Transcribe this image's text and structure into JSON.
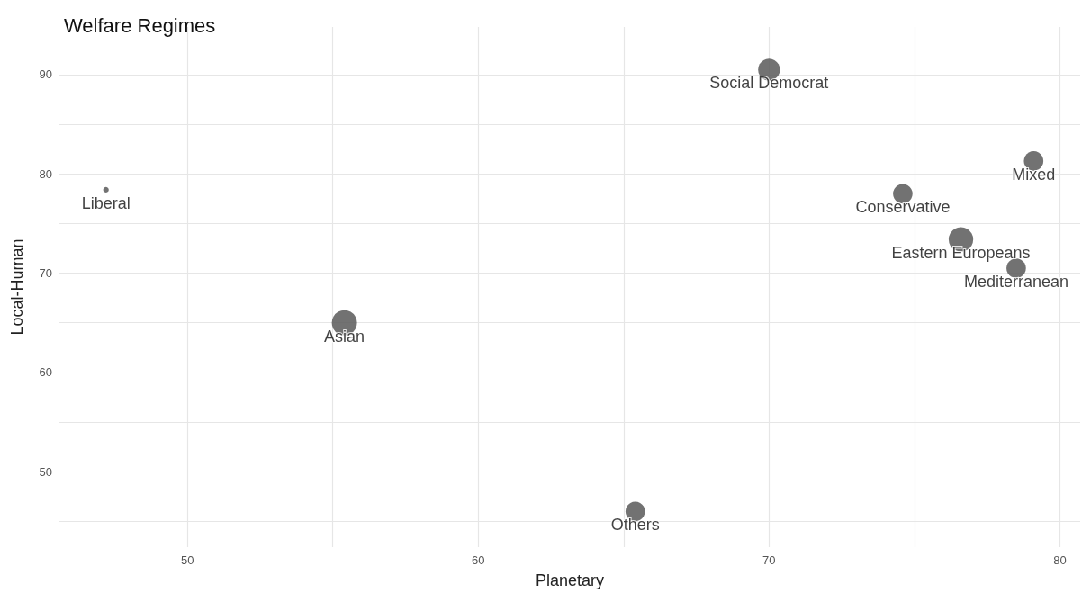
{
  "chart_data": {
    "type": "bubble",
    "title": "Welfare Regimes",
    "xlabel": "Planetary",
    "ylabel": "Local-Human",
    "x": [
      70.0,
      79.1,
      74.6,
      76.6,
      78.5,
      47.2,
      55.4,
      65.4
    ],
    "values": [
      90.5,
      81.3,
      78.0,
      73.4,
      70.5,
      78.4,
      65.0,
      46.0
    ],
    "sizes": [
      0.75,
      0.6,
      0.6,
      0.95,
      0.6,
      0.05,
      1,
      0.6
    ],
    "color": "#595959",
    "annotations": [
      {
        "text": "Social Democrat",
        "x": 70.0,
        "y": 90.5
      },
      {
        "text": "Mixed",
        "x": 79.1,
        "y": 81.3
      },
      {
        "text": "Conservative",
        "x": 74.6,
        "y": 78.0
      },
      {
        "text": "Eastern Europeans",
        "x": 76.6,
        "y": 73.4
      },
      {
        "text": "Mediterranean",
        "x": 78.5,
        "y": 70.5
      },
      {
        "text": "Liberal",
        "x": 47.2,
        "y": 78.4
      },
      {
        "text": "Asian",
        "x": 55.4,
        "y": 65.0
      },
      {
        "text": "Others",
        "x": 65.4,
        "y": 46.0
      }
    ],
    "xlim": [
      45.6,
      80.7
    ],
    "ylim": [
      42.4,
      94.8
    ],
    "xticks": [
      50,
      {
        "value": 55,
        "label": null
      },
      60,
      {
        "value": 65,
        "label": null
      },
      70,
      {
        "value": 75,
        "label": null
      },
      80
    ],
    "yticks": [
      {
        "value": 45,
        "label": null
      },
      50,
      {
        "value": 55,
        "label": null
      },
      60,
      {
        "value": 65,
        "label": null
      },
      70,
      {
        "value": 75,
        "label": null
      },
      80,
      {
        "value": 85,
        "label": null
      },
      90
    ],
    "grid": true
  }
}
